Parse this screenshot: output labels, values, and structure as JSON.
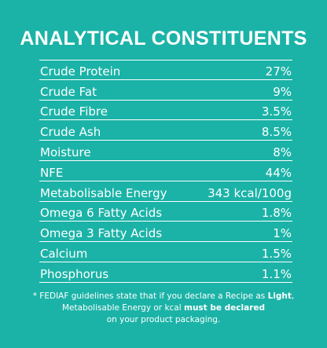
{
  "title": "ANALYTICAL CONSTITUENTS",
  "rows": [
    {
      "label": "Crude Protein",
      "value": "27%"
    },
    {
      "label": "Crude Fat",
      "value": "9%"
    },
    {
      "label": "Crude Fibre",
      "value": "3.5%"
    },
    {
      "label": "Crude Ash",
      "value": "8.5%"
    },
    {
      "label": "Moisture",
      "value": "8%"
    },
    {
      "label": "NFE",
      "value": "44%"
    },
    {
      "label": "Metabolisable Energy",
      "value": "343 kcal/100g"
    },
    {
      "label": "Omega 6 Fatty Acids",
      "value": "1.8%"
    },
    {
      "label": "Omega 3 Fatty Acids",
      "value": "1%"
    },
    {
      "label": "Calcium",
      "value": "1.5%"
    },
    {
      "label": "Phosphorus",
      "value": "1.1%"
    }
  ],
  "footnote": {
    "part1": "* FEDIAF guidelines state that if you declare a Recipe as ",
    "bold1": "Light",
    "part2": ",",
    "part3": "Metabolisable Energy or kcal ",
    "bold2": "must be declared",
    "part4": "on your product packaging."
  },
  "colors": {
    "background": "#1bb3a7",
    "text": "#ffffff"
  }
}
